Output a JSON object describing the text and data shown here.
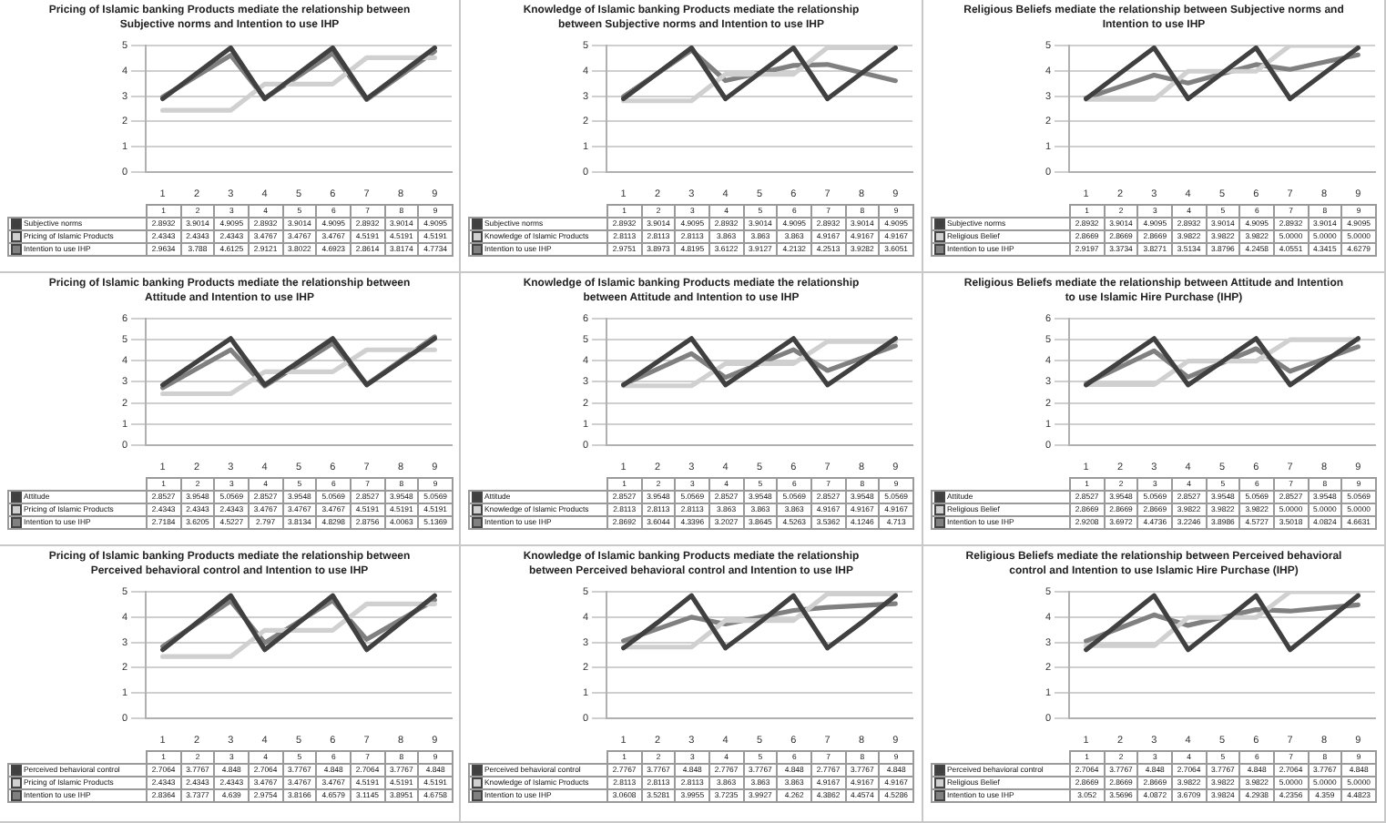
{
  "chart_data": [
    {
      "type": "line",
      "title": "Pricing of Islamic banking Products mediate the relationship between Subjective norms and Intention to use IHP",
      "categories": [
        "1",
        "2",
        "3",
        "4",
        "5",
        "6",
        "7",
        "8",
        "9"
      ],
      "series": [
        {
          "name": "Subjective norms",
          "color": "#404040",
          "values": [
            2.8932,
            3.9014,
            4.9095,
            2.8932,
            3.9014,
            4.9095,
            2.8932,
            3.9014,
            4.9095
          ]
        },
        {
          "name": "Pricing of Islamic Products",
          "color": "#d0d0d0",
          "values": [
            2.4343,
            2.4343,
            2.4343,
            3.4767,
            3.4767,
            3.4767,
            4.5191,
            4.5191,
            4.5191
          ]
        },
        {
          "name": "Intention to use IHP",
          "color": "#808080",
          "values": [
            2.9634,
            3.788,
            4.6125,
            2.9121,
            3.8022,
            4.6923,
            2.8614,
            3.8174,
            4.7734
          ]
        }
      ],
      "ylim": [
        0,
        5
      ],
      "yticks": [
        0,
        1,
        2,
        3,
        4,
        5
      ],
      "grid": "y",
      "legend": "bottom",
      "data_labels": true
    },
    {
      "type": "line",
      "title": "Knowledge of Islamic banking Products mediate the relationship between Subjective norms and Intention to use IHP",
      "categories": [
        "1",
        "2",
        "3",
        "4",
        "5",
        "6",
        "7",
        "8",
        "9"
      ],
      "series": [
        {
          "name": "Subjective norms",
          "color": "#404040",
          "values": [
            2.8932,
            3.9014,
            4.9095,
            2.8932,
            3.9014,
            4.9095,
            2.8932,
            3.9014,
            4.9095
          ]
        },
        {
          "name": "Knowledge of Islamic Products",
          "color": "#d0d0d0",
          "values": [
            2.8113,
            2.8113,
            2.8113,
            3.863,
            3.863,
            3.863,
            4.9167,
            4.9167,
            4.9167
          ]
        },
        {
          "name": "Intention to use IHP",
          "color": "#808080",
          "values": [
            2.9751,
            3.8973,
            4.8195,
            3.6122,
            3.9127,
            4.2132,
            4.2513,
            3.9282,
            3.6051
          ]
        }
      ],
      "ylim": [
        0,
        5
      ],
      "yticks": [
        0,
        1,
        2,
        3,
        4,
        5
      ],
      "grid": "y",
      "legend": "bottom",
      "data_labels": true
    },
    {
      "type": "line",
      "title": "Religious Beliefs mediate the relationship between Subjective norms and Intention to use IHP",
      "categories": [
        "1",
        "2",
        "3",
        "4",
        "5",
        "6",
        "7",
        "8",
        "9"
      ],
      "series": [
        {
          "name": "Subjective norms",
          "color": "#404040",
          "values": [
            2.8932,
            3.9014,
            4.9095,
            2.8932,
            3.9014,
            4.9095,
            2.8932,
            3.9014,
            4.9095
          ]
        },
        {
          "name": "Religious Belief",
          "color": "#d0d0d0",
          "values": [
            2.8669,
            2.8669,
            2.8669,
            3.9822,
            3.9822,
            3.9822,
            5,
            5,
            5
          ],
          "value_labels": [
            "2.8669",
            "2.8669",
            "2.8669",
            "3.9822",
            "3.9822",
            "3.9822",
            "5.0000",
            "5.0000",
            "5.0000"
          ]
        },
        {
          "name": "Intention to use IHP",
          "color": "#808080",
          "values": [
            2.9197,
            3.3734,
            3.8271,
            3.5134,
            3.8796,
            4.2458,
            4.0551,
            4.3415,
            4.6279
          ]
        }
      ],
      "ylim": [
        0,
        5
      ],
      "yticks": [
        0,
        1,
        2,
        3,
        4,
        5
      ],
      "grid": "y",
      "legend": "bottom",
      "data_labels": true
    },
    {
      "type": "line",
      "title": "Pricing of Islamic banking Products mediate the relationship between Attitude and Intention to use IHP",
      "categories": [
        "1",
        "2",
        "3",
        "4",
        "5",
        "6",
        "7",
        "8",
        "9"
      ],
      "series": [
        {
          "name": "Attitude",
          "color": "#404040",
          "values": [
            2.8527,
            3.9548,
            5.0569,
            2.8527,
            3.9548,
            5.0569,
            2.8527,
            3.9548,
            5.0569
          ]
        },
        {
          "name": "Pricing of Islamic Products",
          "color": "#d0d0d0",
          "values": [
            2.4343,
            2.4343,
            2.4343,
            3.4767,
            3.4767,
            3.4767,
            4.5191,
            4.5191,
            4.5191
          ]
        },
        {
          "name": "Intention to use IHP",
          "color": "#808080",
          "values": [
            2.7184,
            3.6205,
            4.5227,
            2.797,
            3.8134,
            4.8298,
            2.8756,
            4.0063,
            5.1369
          ]
        }
      ],
      "ylim": [
        0,
        6
      ],
      "yticks": [
        0,
        1,
        2,
        3,
        4,
        5,
        6
      ],
      "grid": "y",
      "legend": "bottom",
      "data_labels": true
    },
    {
      "type": "line",
      "title": "Knowledge of Islamic banking Products mediate the relationship between Attitude and Intention to use IHP",
      "categories": [
        "1",
        "2",
        "3",
        "4",
        "5",
        "6",
        "7",
        "8",
        "9"
      ],
      "series": [
        {
          "name": "Attitude",
          "color": "#404040",
          "values": [
            2.8527,
            3.9548,
            5.0569,
            2.8527,
            3.9548,
            5.0569,
            2.8527,
            3.9548,
            5.0569
          ]
        },
        {
          "name": "Knowledge of Islamic Products",
          "color": "#d0d0d0",
          "values": [
            2.8113,
            2.8113,
            2.8113,
            3.863,
            3.863,
            3.863,
            4.9167,
            4.9167,
            4.9167
          ]
        },
        {
          "name": "Intention to use IHP",
          "color": "#808080",
          "values": [
            2.8692,
            3.6044,
            4.3396,
            3.2027,
            3.8645,
            4.5263,
            3.5362,
            4.1246,
            4.713
          ]
        }
      ],
      "ylim": [
        0,
        6
      ],
      "yticks": [
        0,
        1,
        2,
        3,
        4,
        5,
        6
      ],
      "grid": "y",
      "legend": "bottom",
      "data_labels": true
    },
    {
      "type": "line",
      "title": "Religious Beliefs mediate the relationship between Attitude and Intention to use Islamic Hire Purchase (IHP)",
      "categories": [
        "1",
        "2",
        "3",
        "4",
        "5",
        "6",
        "7",
        "8",
        "9"
      ],
      "series": [
        {
          "name": "Attitude",
          "color": "#404040",
          "values": [
            2.8527,
            3.9548,
            5.0569,
            2.8527,
            3.9548,
            5.0569,
            2.8527,
            3.9548,
            5.0569
          ]
        },
        {
          "name": "Religious Belief",
          "color": "#d0d0d0",
          "values": [
            2.8669,
            2.8669,
            2.8669,
            3.9822,
            3.9822,
            3.9822,
            5,
            5,
            5
          ],
          "value_labels": [
            "2.8669",
            "2.8669",
            "2.8669",
            "3.9822",
            "3.9822",
            "3.9822",
            "5.0000",
            "5.0000",
            "5.0000"
          ]
        },
        {
          "name": "Intention to use IHP",
          "color": "#808080",
          "values": [
            2.9208,
            3.6972,
            4.4736,
            3.2246,
            3.8986,
            4.5727,
            3.5018,
            4.0824,
            4.6631
          ]
        }
      ],
      "ylim": [
        0,
        6
      ],
      "yticks": [
        0,
        1,
        2,
        3,
        4,
        5,
        6
      ],
      "grid": "y",
      "legend": "bottom",
      "data_labels": true
    },
    {
      "type": "line",
      "title": "Pricing of Islamic banking Products mediate the relationship between Perceived behavioral control and Intention to use IHP",
      "categories": [
        "1",
        "2",
        "3",
        "4",
        "5",
        "6",
        "7",
        "8",
        "9"
      ],
      "series": [
        {
          "name": "Perceived behavioral control",
          "color": "#404040",
          "values": [
            2.7064,
            3.7767,
            4.848,
            2.7064,
            3.7767,
            4.848,
            2.7064,
            3.7767,
            4.848
          ]
        },
        {
          "name": "Pricing of Islamic Products",
          "color": "#d0d0d0",
          "values": [
            2.4343,
            2.4343,
            2.4343,
            3.4767,
            3.4767,
            3.4767,
            4.5191,
            4.5191,
            4.5191
          ]
        },
        {
          "name": "Intention to use IHP",
          "color": "#808080",
          "values": [
            2.8364,
            3.7377,
            4.639,
            2.9754,
            3.8166,
            4.6579,
            3.1145,
            3.8951,
            4.6758
          ]
        }
      ],
      "ylim": [
        0,
        5
      ],
      "yticks": [
        0,
        1,
        2,
        3,
        4,
        5
      ],
      "grid": "y",
      "legend": "bottom",
      "data_labels": true
    },
    {
      "type": "line",
      "title": "Knowledge of Islamic banking Products mediate the relationship between Perceived behavioral control and Intention to use IHP",
      "categories": [
        "1",
        "2",
        "3",
        "4",
        "5",
        "6",
        "7",
        "8",
        "9"
      ],
      "series": [
        {
          "name": "Perceived behavioral control",
          "color": "#404040",
          "values": [
            2.7767,
            3.7767,
            4.848,
            2.7767,
            3.7767,
            4.848,
            2.7767,
            3.7767,
            4.848
          ]
        },
        {
          "name": "Knowledge of Islamic Products",
          "color": "#d0d0d0",
          "values": [
            2.8113,
            2.8113,
            2.8113,
            3.863,
            3.863,
            3.863,
            4.9167,
            4.9167,
            4.9167
          ]
        },
        {
          "name": "Intention to use IHP",
          "color": "#808080",
          "values": [
            3.0608,
            3.5281,
            3.9955,
            3.7235,
            3.9927,
            4.262,
            4.3862,
            4.4574,
            4.5286
          ]
        }
      ],
      "ylim": [
        0,
        5
      ],
      "yticks": [
        0,
        1,
        2,
        3,
        4,
        5
      ],
      "grid": "y",
      "legend": "bottom",
      "data_labels": true
    },
    {
      "type": "line",
      "title": "Religious Beliefs mediate the relationship between Perceived behavioral control and Intention to use Islamic Hire Purchase (IHP)",
      "categories": [
        "1",
        "2",
        "3",
        "4",
        "5",
        "6",
        "7",
        "8",
        "9"
      ],
      "series": [
        {
          "name": "Perceived behavioral control",
          "color": "#404040",
          "values": [
            2.7064,
            3.7767,
            4.848,
            2.7064,
            3.7767,
            4.848,
            2.7064,
            3.7767,
            4.848
          ]
        },
        {
          "name": "Religious Belief",
          "color": "#d0d0d0",
          "values": [
            2.8669,
            2.8669,
            2.8669,
            3.9822,
            3.9822,
            3.9822,
            5,
            5,
            5
          ],
          "value_labels": [
            "2.8669",
            "2.8669",
            "2.8669",
            "3.9822",
            "3.9822",
            "3.9822",
            "5.0000",
            "5.0000",
            "5.0000"
          ]
        },
        {
          "name": "Intention to use IHP",
          "color": "#808080",
          "values": [
            3.052,
            3.5696,
            4.0872,
            3.6709,
            3.9824,
            4.2938,
            4.2356,
            4.359,
            4.4823
          ]
        }
      ],
      "ylim": [
        0,
        5
      ],
      "yticks": [
        0,
        1,
        2,
        3,
        4,
        5
      ],
      "grid": "y",
      "legend": "bottom",
      "data_labels": true
    }
  ]
}
